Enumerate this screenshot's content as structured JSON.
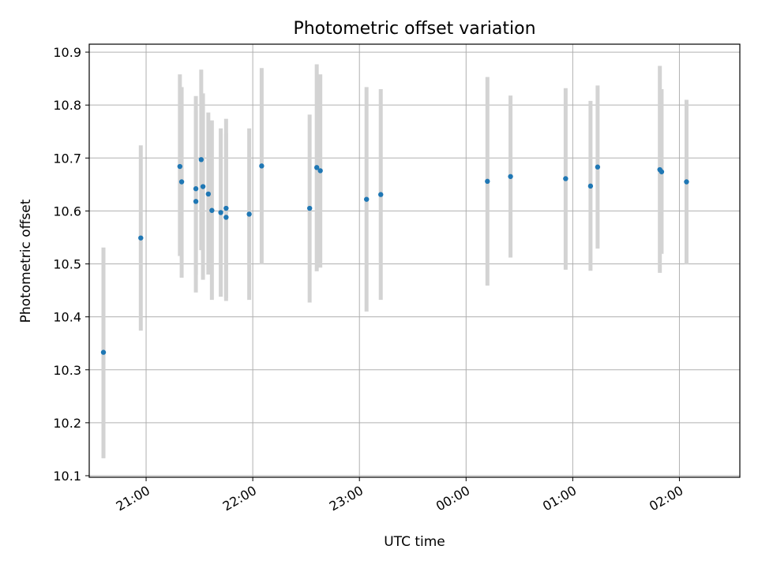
{
  "chart_data": {
    "type": "scatter",
    "title": "Photometric offset variation",
    "xlabel": "UTC time",
    "ylabel": "Photometric offset",
    "x_axis_type": "time",
    "xlim": [
      "20:28",
      "02:34"
    ],
    "ylim": [
      10.097,
      10.915
    ],
    "grid": true,
    "legend": "none",
    "xticks": [
      "21:00",
      "22:00",
      "23:00",
      "00:00",
      "01:00",
      "02:00"
    ],
    "yticks": [
      "10.1",
      "10.2",
      "10.3",
      "10.4",
      "10.5",
      "10.6",
      "10.7",
      "10.8",
      "10.9"
    ],
    "point_color": "#1f77b4",
    "errorbar_color": "#d3d3d3",
    "points": [
      {
        "time": "20:36",
        "y": 10.333,
        "ylow": 10.133,
        "yhigh": 10.531
      },
      {
        "time": "20:57",
        "y": 10.549,
        "ylow": 10.374,
        "yhigh": 10.724
      },
      {
        "time": "21:19",
        "y": 10.684,
        "ylow": 10.515,
        "yhigh": 10.858
      },
      {
        "time": "21:20",
        "y": 10.655,
        "ylow": 10.474,
        "yhigh": 10.834
      },
      {
        "time": "21:28",
        "y": 10.642,
        "ylow": 10.479,
        "yhigh": 10.817
      },
      {
        "time": "21:28",
        "y": 10.618,
        "ylow": 10.446,
        "yhigh": 10.79
      },
      {
        "time": "21:31",
        "y": 10.697,
        "ylow": 10.526,
        "yhigh": 10.867
      },
      {
        "time": "21:32",
        "y": 10.646,
        "ylow": 10.47,
        "yhigh": 10.822
      },
      {
        "time": "21:35",
        "y": 10.632,
        "ylow": 10.48,
        "yhigh": 10.786
      },
      {
        "time": "21:37",
        "y": 10.601,
        "ylow": 10.432,
        "yhigh": 10.771
      },
      {
        "time": "21:42",
        "y": 10.597,
        "ylow": 10.438,
        "yhigh": 10.756
      },
      {
        "time": "21:45",
        "y": 10.605,
        "ylow": 10.436,
        "yhigh": 10.774
      },
      {
        "time": "21:45",
        "y": 10.588,
        "ylow": 10.43,
        "yhigh": 10.746
      },
      {
        "time": "21:58",
        "y": 10.594,
        "ylow": 10.432,
        "yhigh": 10.756
      },
      {
        "time": "22:05",
        "y": 10.685,
        "ylow": 10.499,
        "yhigh": 10.87
      },
      {
        "time": "22:32",
        "y": 10.605,
        "ylow": 10.427,
        "yhigh": 10.782
      },
      {
        "time": "22:36",
        "y": 10.682,
        "ylow": 10.486,
        "yhigh": 10.877
      },
      {
        "time": "22:38",
        "y": 10.676,
        "ylow": 10.493,
        "yhigh": 10.858
      },
      {
        "time": "23:04",
        "y": 10.622,
        "ylow": 10.41,
        "yhigh": 10.834
      },
      {
        "time": "23:12",
        "y": 10.631,
        "ylow": 10.432,
        "yhigh": 10.83
      },
      {
        "time": "00:12",
        "y": 10.656,
        "ylow": 10.459,
        "yhigh": 10.853
      },
      {
        "time": "00:25",
        "y": 10.665,
        "ylow": 10.512,
        "yhigh": 10.818
      },
      {
        "time": "00:56",
        "y": 10.661,
        "ylow": 10.489,
        "yhigh": 10.832
      },
      {
        "time": "01:10",
        "y": 10.647,
        "ylow": 10.487,
        "yhigh": 10.808
      },
      {
        "time": "01:14",
        "y": 10.683,
        "ylow": 10.529,
        "yhigh": 10.837
      },
      {
        "time": "01:49",
        "y": 10.678,
        "ylow": 10.483,
        "yhigh": 10.874
      },
      {
        "time": "01:50",
        "y": 10.674,
        "ylow": 10.519,
        "yhigh": 10.83
      },
      {
        "time": "02:04",
        "y": 10.655,
        "ylow": 10.499,
        "yhigh": 10.81
      }
    ]
  }
}
